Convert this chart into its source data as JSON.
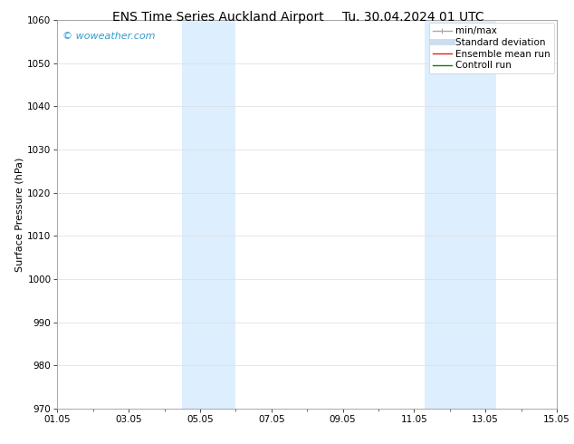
{
  "title_left": "ENS Time Series Auckland Airport",
  "title_right": "Tu. 30.04.2024 01 UTC",
  "ylabel": "Surface Pressure (hPa)",
  "ylim": [
    970,
    1060
  ],
  "yticks": [
    970,
    980,
    990,
    1000,
    1010,
    1020,
    1030,
    1040,
    1050,
    1060
  ],
  "xlim_start": 0.0,
  "xlim_end": 14.0,
  "xtick_positions": [
    0,
    2,
    4,
    6,
    8,
    10,
    12,
    14
  ],
  "xtick_labels": [
    "01.05",
    "03.05",
    "05.05",
    "07.05",
    "09.05",
    "11.05",
    "13.05",
    "15.05"
  ],
  "shaded_bands": [
    {
      "x_start": 3.5,
      "x_end": 5.0
    },
    {
      "x_start": 10.3,
      "x_end": 12.3
    }
  ],
  "shaded_color": "#ddeeff",
  "watermark_text": "© woweather.com",
  "watermark_color": "#3399cc",
  "background_color": "#ffffff",
  "grid_color": "#dddddd",
  "legend_entries": [
    {
      "label": "min/max",
      "color": "#aaaaaa",
      "lw": 1.0,
      "style": "caps"
    },
    {
      "label": "Standard deviation",
      "color": "#ccddf0",
      "lw": 5,
      "style": "solid"
    },
    {
      "label": "Ensemble mean run",
      "color": "#dd2222",
      "lw": 1.0,
      "style": "solid"
    },
    {
      "label": "Controll run",
      "color": "#008800",
      "lw": 1.0,
      "style": "solid"
    }
  ],
  "title_fontsize": 10,
  "tick_fontsize": 7.5,
  "legend_fontsize": 7.5,
  "ylabel_fontsize": 8,
  "watermark_fontsize": 8
}
